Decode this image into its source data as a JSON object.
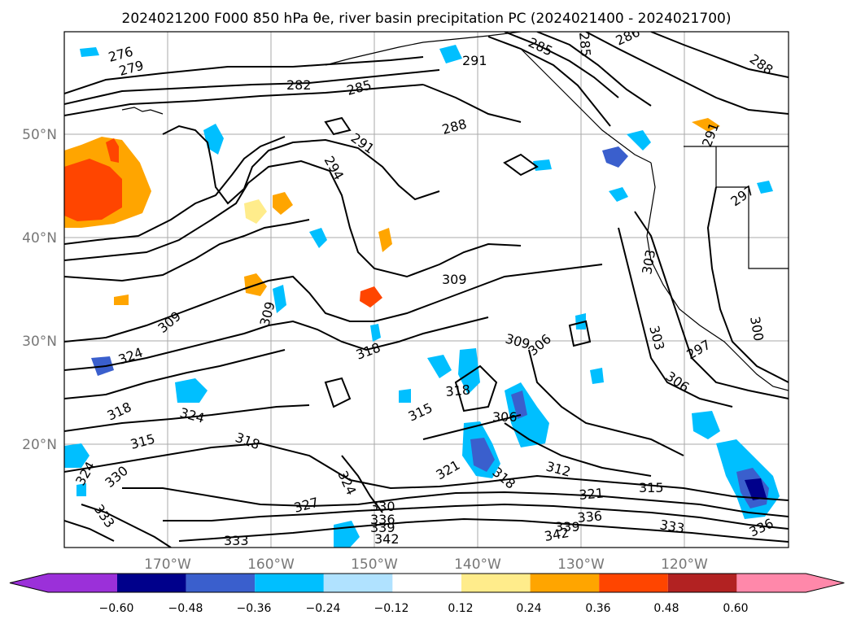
{
  "title": "2024021200 F000 850 hPa θe, river basin precipitation PC (2024021400 - 2024021700)",
  "map": {
    "lat_labels": [
      "50°N",
      "40°N",
      "30°N",
      "20°N"
    ],
    "lon_labels": [
      "170°W",
      "160°W",
      "150°W",
      "140°W",
      "130°W",
      "120°W"
    ]
  },
  "colorbar": {
    "colors": [
      "#9b30d9",
      "#00008b",
      "#3a5fcd",
      "#00bfff",
      "#b0e2ff",
      "#ffffff",
      "#ffec8b",
      "#ffa500",
      "#ff4500",
      "#b22222",
      "#ff88aa"
    ],
    "tick_labels": [
      "−0.60",
      "−0.48",
      "−0.36",
      "−0.24",
      "−0.12",
      "0.12",
      "0.24",
      "0.36",
      "0.48",
      "0.60"
    ]
  },
  "contour_labels": [
    "276",
    "279",
    "282",
    "285",
    "285",
    "285",
    "286",
    "288",
    "288",
    "291",
    "291",
    "291",
    "294",
    "297",
    "297",
    "300",
    "303",
    "303",
    "306",
    "306",
    "306",
    "309",
    "309",
    "309",
    "309",
    "312",
    "315",
    "315",
    "315",
    "318",
    "318",
    "318",
    "318",
    "318",
    "321",
    "321",
    "324",
    "324",
    "324",
    "324",
    "327",
    "330",
    "330",
    "333",
    "333",
    "333",
    "336",
    "336",
    "336",
    "339",
    "339",
    "342",
    "342"
  ]
}
